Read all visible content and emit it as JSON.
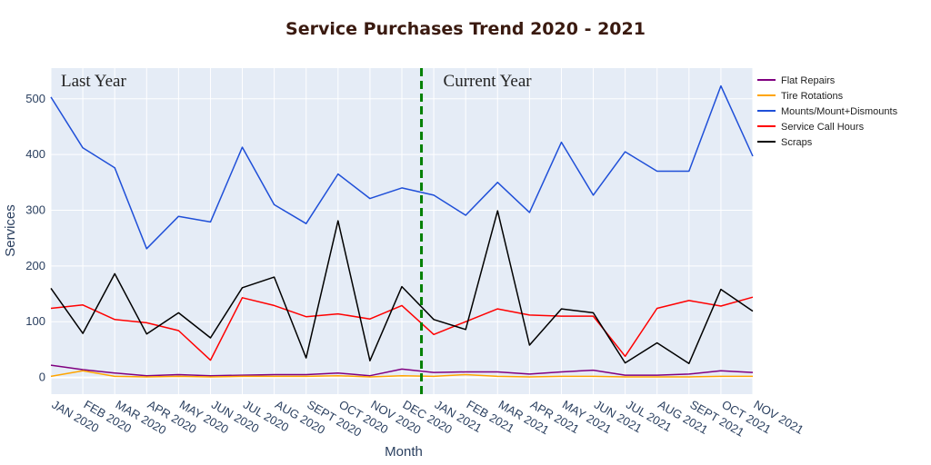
{
  "chart_data": {
    "type": "line",
    "title": "Service Purchases Trend 2020 - 2021",
    "xlabel": "Month",
    "ylabel": "Services",
    "ylim": [
      -30,
      555
    ],
    "yticks": [
      0,
      100,
      200,
      300,
      400,
      500
    ],
    "categories": [
      "JAN 2020",
      "FEB 2020",
      "MAR 2020",
      "APR 2020",
      "MAY 2020",
      "JUN 2020",
      "JUL 2020",
      "AUG 2020",
      "SEPT 2020",
      "OCT 2020",
      "NOV 2020",
      "DEC 2020",
      "JAN 2021",
      "FEB 2021",
      "MAR 2021",
      "APR 2021",
      "MAY 2021",
      "JUN 2021",
      "JUL 2021",
      "AUG 2021",
      "SEPT 2021",
      "OCT 2021",
      "NOV 2021"
    ],
    "divider_index": 11.5,
    "divider_color": "#008000",
    "annotations": [
      {
        "text": "Last Year",
        "side": "left"
      },
      {
        "text": "Current Year",
        "side": "right"
      }
    ],
    "legend_position": "top-right",
    "series": [
      {
        "name": "Flat Repairs",
        "color": "#800080",
        "values": [
          22,
          14,
          8,
          3,
          5,
          3,
          4,
          5,
          5,
          8,
          3,
          15,
          9,
          10,
          10,
          6,
          10,
          13,
          4,
          4,
          6,
          12,
          9
        ]
      },
      {
        "name": "Tire Rotations",
        "color": "#FFA500",
        "values": [
          2,
          12,
          2,
          1,
          2,
          1,
          2,
          2,
          2,
          3,
          1,
          3,
          2,
          5,
          2,
          1,
          2,
          2,
          1,
          1,
          1,
          2,
          2
        ]
      },
      {
        "name": "Mounts/Mount+Dismounts",
        "color": "#1F4FD8",
        "values": [
          503,
          412,
          376,
          231,
          289,
          279,
          413,
          310,
          276,
          365,
          321,
          340,
          327,
          291,
          350,
          296,
          422,
          327,
          405,
          370,
          370,
          523,
          397
        ]
      },
      {
        "name": "Service Call Hours",
        "color": "#FF0000",
        "values": [
          124,
          130,
          104,
          98,
          84,
          31,
          143,
          129,
          109,
          114,
          105,
          129,
          77,
          100,
          123,
          112,
          110,
          110,
          38,
          124,
          138,
          128,
          144
        ]
      },
      {
        "name": "Scraps",
        "color": "#000000",
        "values": [
          160,
          79,
          186,
          78,
          116,
          71,
          161,
          180,
          35,
          281,
          30,
          163,
          104,
          86,
          299,
          58,
          123,
          116,
          26,
          62,
          25,
          158,
          119
        ]
      }
    ]
  }
}
